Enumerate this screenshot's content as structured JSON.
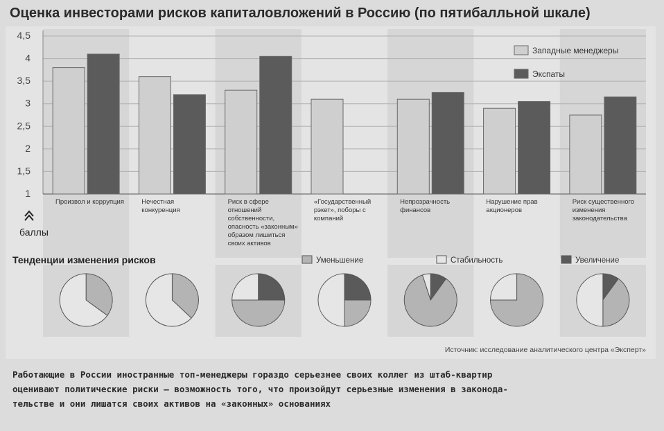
{
  "title": "Оценка инвесторами рисков капиталовложений в Россию (по пятибалльной шкале)",
  "chart_data": [
    {
      "type": "bar",
      "ylabel": "баллы",
      "ylim": [
        1,
        4.5
      ],
      "yticks": [
        "4,5",
        "4",
        "3,5",
        "3",
        "2,5",
        "2",
        "1,5",
        "1"
      ],
      "ytick_values": [
        4.5,
        4,
        3.5,
        3,
        2.5,
        2,
        1.5,
        1
      ],
      "categories": [
        "Произвол и коррупция",
        "Нечестная конкуренция",
        "Риск в сфере отношений собственности, опасность «законным» образом лишиться своих активов",
        "«Государственный рэкет», поборы с компаний",
        "Непрозрачность финансов",
        "Нарушение прав акционеров",
        "Риск существенного изменения законодательства"
      ],
      "series": [
        {
          "name": "Западные менеджеры",
          "color": "#cfcfcf",
          "values": [
            3.8,
            3.6,
            3.3,
            3.1,
            3.1,
            2.9,
            2.75
          ]
        },
        {
          "name": "Экспаты",
          "color": "#5b5b5b",
          "values": [
            4.1,
            3.2,
            4.05,
            null,
            3.25,
            3.05,
            3.15
          ]
        }
      ],
      "legend": "top-right"
    },
    {
      "type": "pie",
      "title": "Тенденции изменения рисков",
      "legend": [
        "Уменьшение",
        "Стабильность",
        "Увеличение"
      ],
      "colors": [
        "#b4b4b4",
        "#e6e6e6",
        "#5a5a5a"
      ],
      "pies": [
        {
          "values": [
            0.35,
            0.65,
            0.0
          ]
        },
        {
          "values": [
            0.37,
            0.63,
            0.0
          ]
        },
        {
          "values": [
            0.5,
            0.25,
            0.25
          ]
        },
        {
          "values": [
            0.25,
            0.5,
            0.25
          ]
        },
        {
          "values": [
            0.85,
            0.05,
            0.1
          ]
        },
        {
          "values": [
            0.75,
            0.25,
            0.0
          ]
        },
        {
          "values": [
            0.4,
            0.5,
            0.1
          ]
        }
      ]
    }
  ],
  "source": "Источник: исследование аналитического центра «Эксперт»",
  "caption": [
    "Работающие в России иностранные топ-менеджеры гораздо серьезнее своих коллег из штаб-квартир",
    "оценивают политические риски — возможность того, что произойдут серьезные изменения в законода-",
    "тельстве и они лишатся своих активов на «законных» основаниях"
  ]
}
